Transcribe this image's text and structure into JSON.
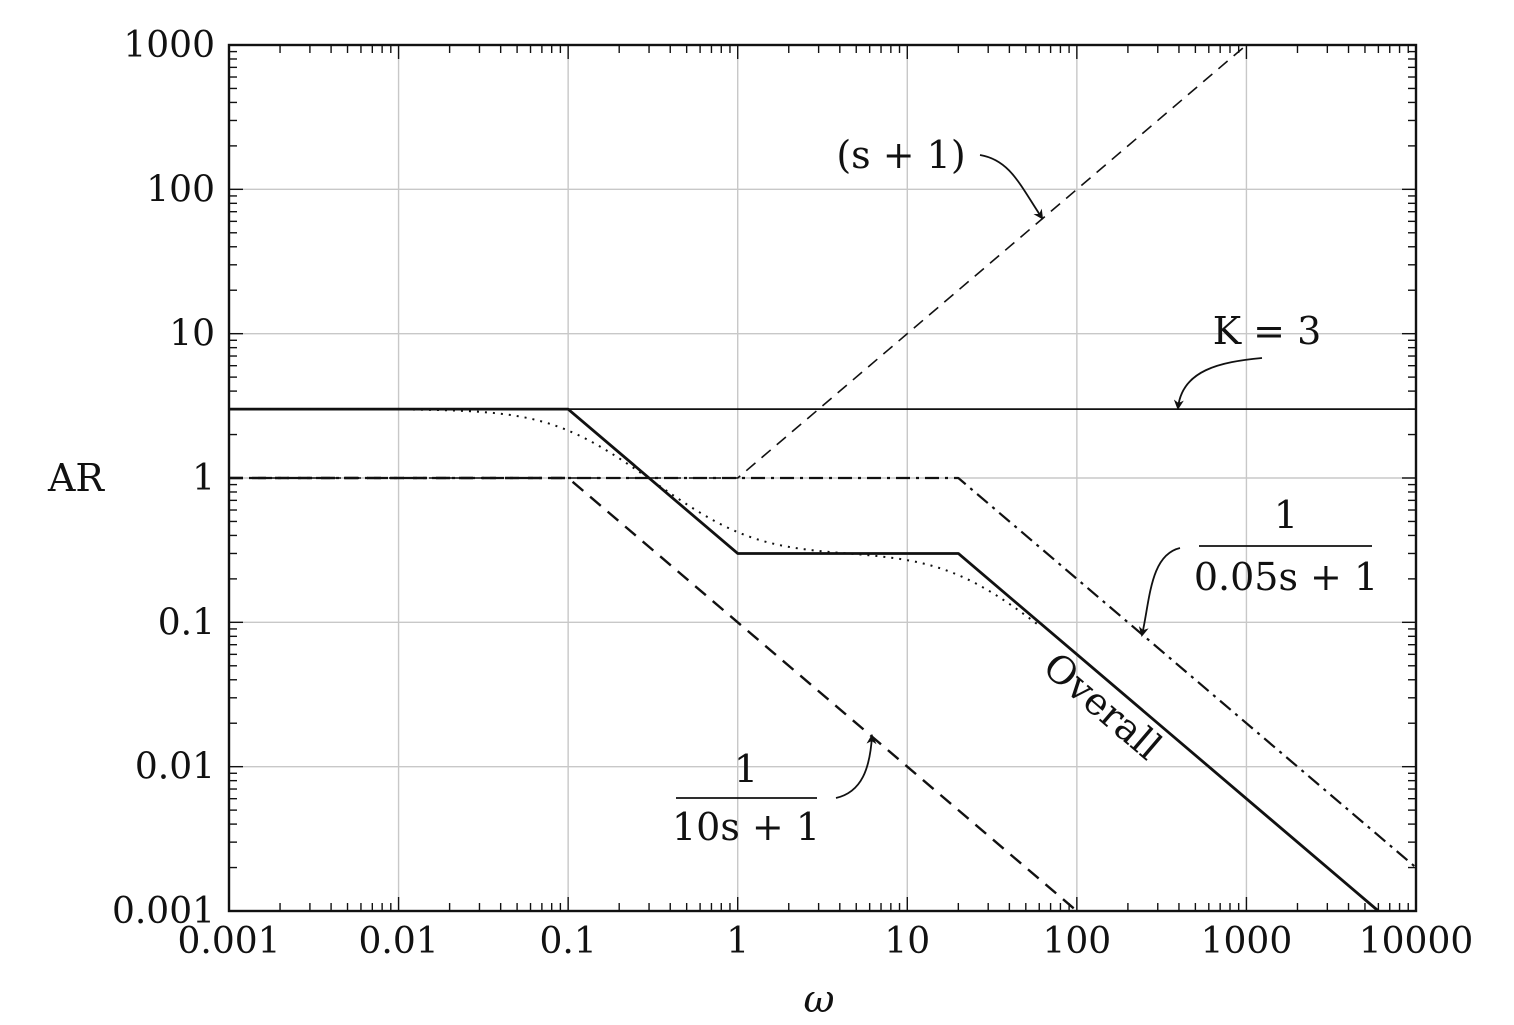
{
  "chart_data": {
    "type": "line",
    "xscale": "log",
    "yscale": "log",
    "xlim": [
      0.001,
      10000
    ],
    "ylim": [
      0.001,
      1000
    ],
    "xlabel": "ω",
    "ylabel": "AR",
    "grid": true,
    "x_ticks": [
      "0.001",
      "0.01",
      "0.1",
      "1",
      "10",
      "100",
      "1000",
      "10000"
    ],
    "y_ticks": [
      "0.001",
      "0.01",
      "0.1",
      "1",
      "10",
      "100",
      "1000"
    ],
    "series": [
      {
        "key": "k",
        "name": "K = 3",
        "style": "solid-thin",
        "x": [
          0.001,
          10000
        ],
        "y": [
          3,
          3
        ]
      },
      {
        "key": "zero",
        "name": "(s + 1)",
        "style": "dashed-thin",
        "x": [
          0.001,
          1,
          1000
        ],
        "y": [
          1,
          1,
          1000
        ]
      },
      {
        "key": "lag10",
        "name": "1 / (10s + 1)",
        "style": "dashed-bold",
        "x": [
          0.001,
          0.1,
          100
        ],
        "y": [
          1,
          1,
          0.001
        ]
      },
      {
        "key": "lag005",
        "name": "1 / (0.05s + 1)",
        "style": "dashdot",
        "x": [
          0.001,
          20,
          10000
        ],
        "y": [
          1,
          1,
          0.002
        ]
      },
      {
        "key": "overall",
        "name": "Overall",
        "style": "solid-bold",
        "x": [
          0.001,
          0.1,
          1,
          20,
          6000
        ],
        "y": [
          3,
          3,
          0.3,
          0.3,
          0.001
        ]
      },
      {
        "key": "exact",
        "name": "",
        "style": "dotted",
        "function": "3*sqrt(w^2+1)/(sqrt(100w^2+1)*sqrt(0.0025w^2+1))",
        "x_range": [
          0.001,
          60
        ]
      }
    ],
    "annotations": {
      "k": "K = 3",
      "zero": "(s + 1)",
      "lag10_num": "1",
      "lag10_den": "10s + 1",
      "lag005_num": "1",
      "lag005_den": "0.05s + 1",
      "overall": "Overall"
    }
  }
}
